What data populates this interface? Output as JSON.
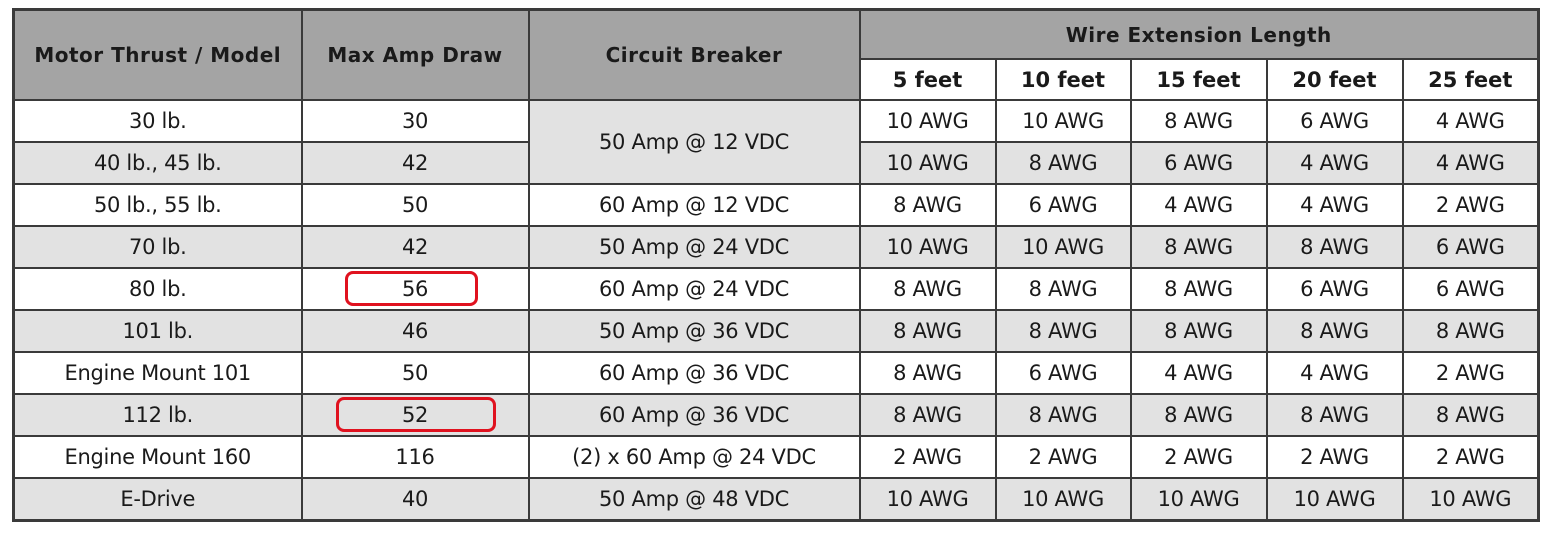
{
  "headers": {
    "motor": "Motor Thrust / Model",
    "amp": "Max Amp Draw",
    "breaker": "Circuit Breaker",
    "wire_group": "Wire Extension Length",
    "lengths": [
      "5 feet",
      "10 feet",
      "15 feet",
      "20 feet",
      "25 feet"
    ]
  },
  "rows": [
    {
      "motor": "30 lb.",
      "amp": "30",
      "breaker": "50 Amp @ 12 VDC",
      "wire": [
        "10 AWG",
        "10 AWG",
        "8 AWG",
        "6 AWG",
        "4 AWG"
      ]
    },
    {
      "motor": "40 lb., 45 lb.",
      "amp": "42",
      "wire": [
        "10 AWG",
        "8 AWG",
        "6 AWG",
        "4 AWG",
        "4 AWG"
      ]
    },
    {
      "motor": "50 lb., 55 lb.",
      "amp": "50",
      "breaker": "60 Amp @ 12 VDC",
      "wire": [
        "8 AWG",
        "6 AWG",
        "4 AWG",
        "4 AWG",
        "2 AWG"
      ]
    },
    {
      "motor": "70 lb.",
      "amp": "42",
      "breaker": "50 Amp @ 24 VDC",
      "wire": [
        "10 AWG",
        "10 AWG",
        "8 AWG",
        "8 AWG",
        "6 AWG"
      ]
    },
    {
      "motor": "80 lb.",
      "amp": "56",
      "breaker": "60 Amp @ 24 VDC",
      "wire": [
        "8 AWG",
        "8 AWG",
        "8 AWG",
        "6 AWG",
        "6 AWG"
      ]
    },
    {
      "motor": "101 lb.",
      "amp": "46",
      "breaker": "50 Amp @ 36 VDC",
      "wire": [
        "8 AWG",
        "8 AWG",
        "8 AWG",
        "8 AWG",
        "8 AWG"
      ]
    },
    {
      "motor": "Engine Mount 101",
      "amp": "50",
      "breaker": "60 Amp @ 36 VDC",
      "wire": [
        "8 AWG",
        "6 AWG",
        "4 AWG",
        "4 AWG",
        "2 AWG"
      ]
    },
    {
      "motor": "112 lb.",
      "amp": "52",
      "breaker": "60 Amp @ 36 VDC",
      "wire": [
        "8 AWG",
        "8 AWG",
        "8 AWG",
        "8 AWG",
        "8 AWG"
      ]
    },
    {
      "motor": "Engine Mount 160",
      "amp": "116",
      "breaker": "(2) x 60 Amp @ 24 VDC",
      "wire": [
        "2 AWG",
        "2 AWG",
        "2 AWG",
        "2 AWG",
        "2 AWG"
      ]
    },
    {
      "motor": "E-Drive",
      "amp": "40",
      "breaker": "50 Amp @ 48 VDC",
      "wire": [
        "10 AWG",
        "10 AWG",
        "10 AWG",
        "10 AWG",
        "10 AWG"
      ]
    }
  ],
  "highlight_color": "#e0121f"
}
